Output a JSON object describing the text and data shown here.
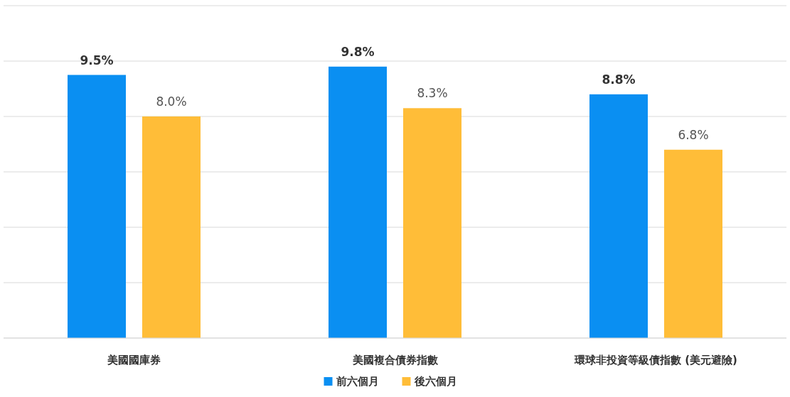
{
  "chart_data": {
    "type": "bar",
    "categories": [
      "美國國庫券",
      "美國複合債券指數",
      "環球非投資等級債指數 (美元避險)"
    ],
    "series": [
      {
        "name": "前六個月",
        "color": "#0a8ff2",
        "values": [
          9.5,
          9.8,
          8.8
        ],
        "value_labels": [
          "9.5%",
          "9.8%",
          "8.8%"
        ]
      },
      {
        "name": "後六個月",
        "color": "#ffbd38",
        "values": [
          8.0,
          8.3,
          6.8
        ],
        "value_labels": [
          "8.0%",
          "8.3%",
          "6.8%"
        ]
      }
    ],
    "ylim": [
      0,
      12
    ],
    "yticks": [
      {
        "value": 0,
        "label": null
      },
      {
        "value": 2,
        "label": null
      },
      {
        "value": 4,
        "label": null
      },
      {
        "value": 6,
        "label": null
      },
      {
        "value": 8,
        "label": null
      },
      {
        "value": 10,
        "label": null
      },
      {
        "value": 12,
        "label": null
      }
    ],
    "grid": "y",
    "legend": "bottom"
  }
}
